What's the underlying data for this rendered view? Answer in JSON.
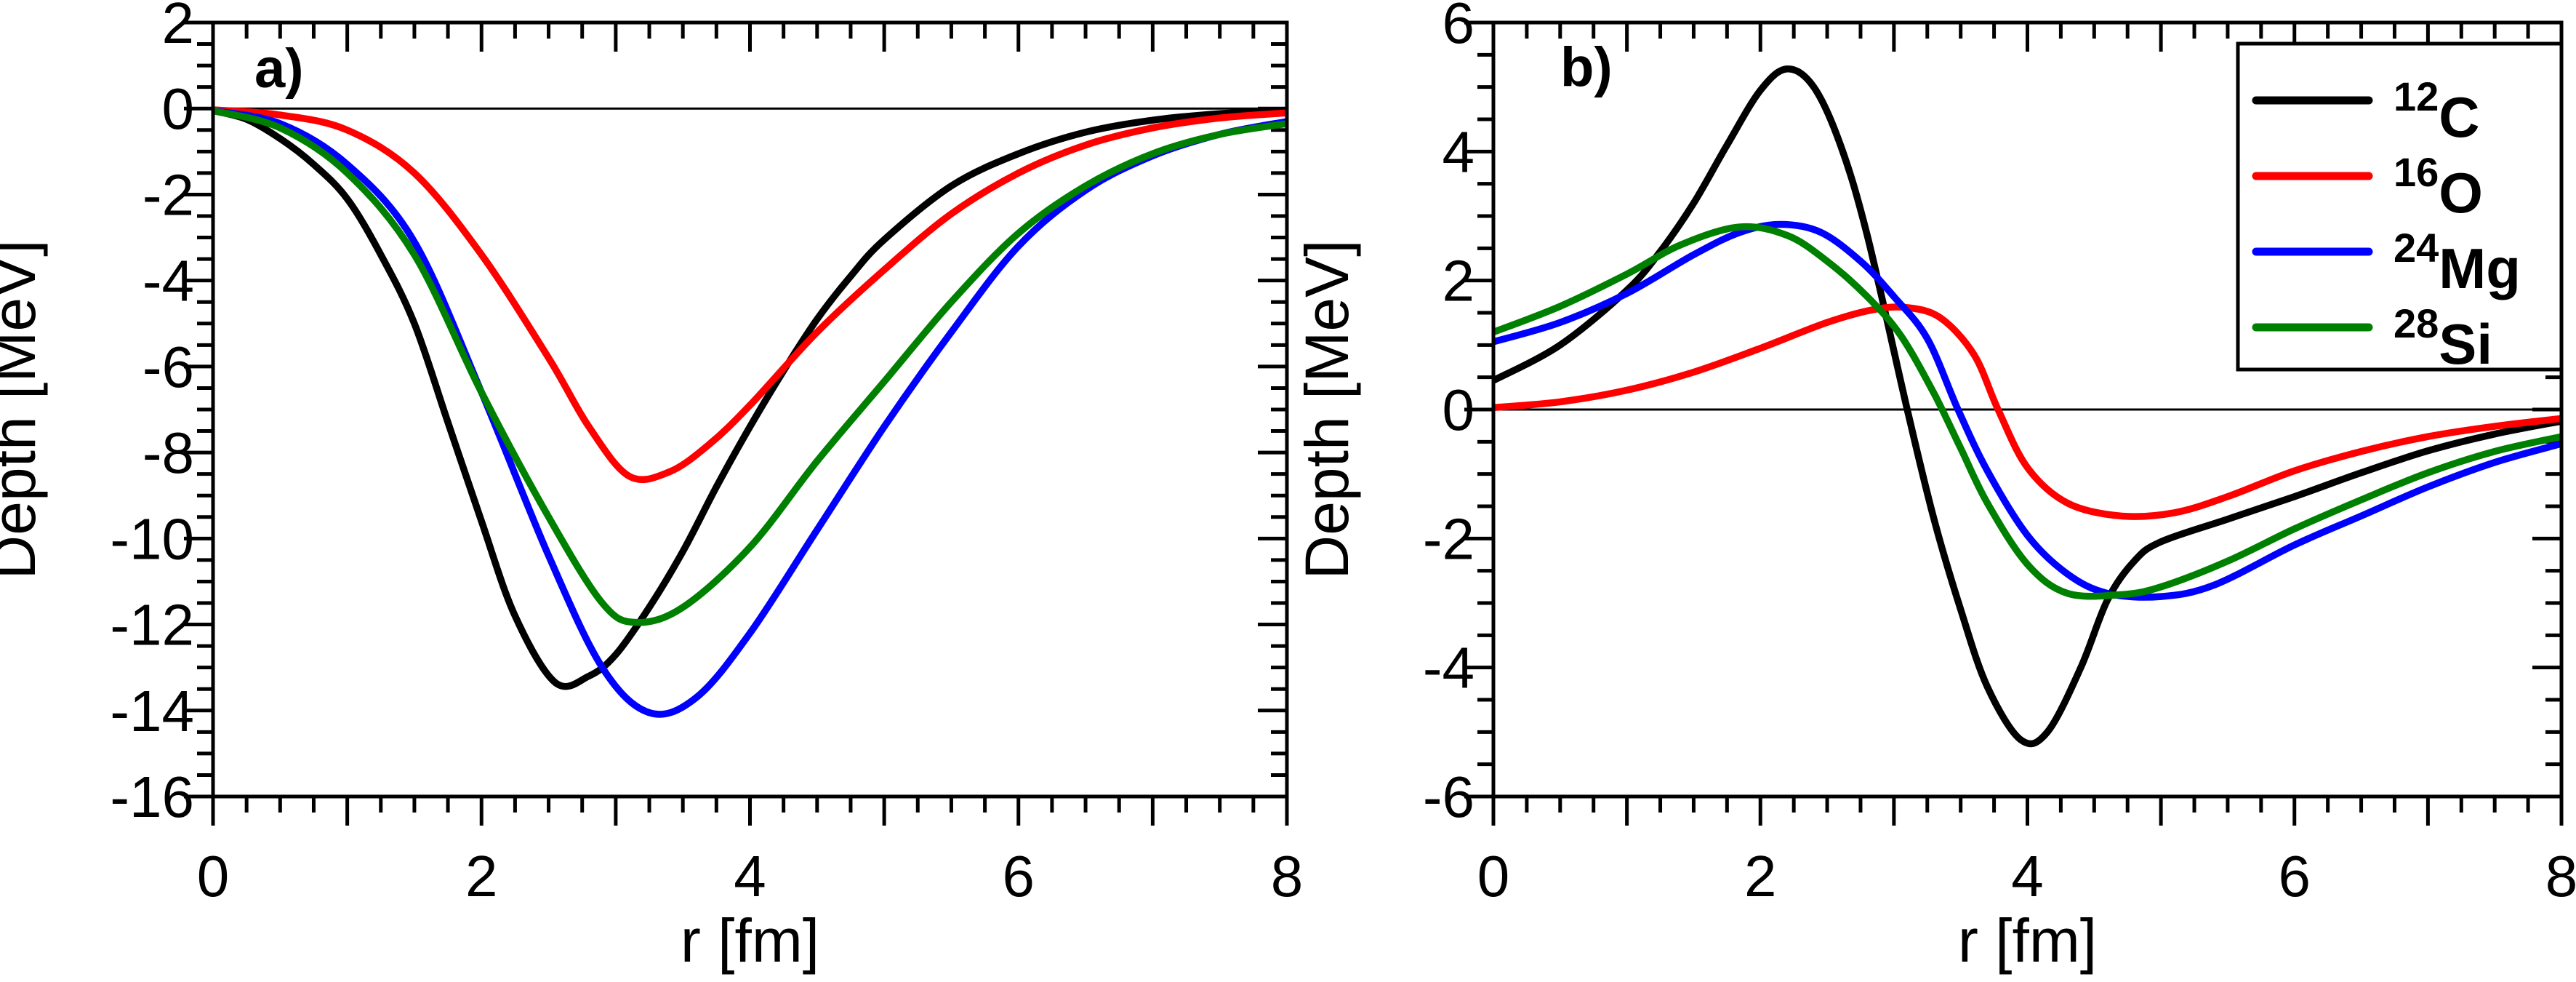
{
  "figure": {
    "background": "#ffffff",
    "axis_color": "#000000"
  },
  "chart_data": [
    {
      "type": "line",
      "panel_label": "a)",
      "xlabel": "r [fm]",
      "ylabel": "Depth [MeV]",
      "xlim": [
        0,
        8
      ],
      "ylim": [
        -16,
        2
      ],
      "grid": false,
      "zero_line": true,
      "x_tick_labels": [
        "0",
        "2",
        "4",
        "6",
        "8"
      ],
      "y_tick_labels": [
        "2",
        "0",
        "-2",
        "-4",
        "-6",
        "-8",
        "-10",
        "-12",
        "-14",
        "-16"
      ],
      "x_label_step": 2,
      "x_minor_step": 0.25,
      "y_label_step": 2,
      "y_minor_step": 0.5,
      "legend_position": "none",
      "series": [
        {
          "name": "12C",
          "color": "#000000",
          "points": [
            [
              0,
              -0.05
            ],
            [
              0.25,
              -0.25
            ],
            [
              0.5,
              -0.7
            ],
            [
              0.75,
              -1.3
            ],
            [
              1,
              -2.1
            ],
            [
              1.25,
              -3.4
            ],
            [
              1.5,
              -5.0
            ],
            [
              1.75,
              -7.3
            ],
            [
              2,
              -9.6
            ],
            [
              2.25,
              -11.8
            ],
            [
              2.55,
              -13.35
            ],
            [
              2.8,
              -13.2
            ],
            [
              3,
              -12.7
            ],
            [
              3.25,
              -11.6
            ],
            [
              3.5,
              -10.3
            ],
            [
              3.75,
              -8.8
            ],
            [
              4,
              -7.4
            ],
            [
              4.25,
              -6.1
            ],
            [
              4.5,
              -4.9
            ],
            [
              4.75,
              -3.9
            ],
            [
              5,
              -3.05
            ],
            [
              5.5,
              -1.8
            ],
            [
              6,
              -1.05
            ],
            [
              6.5,
              -0.55
            ],
            [
              7,
              -0.27
            ],
            [
              7.5,
              -0.12
            ],
            [
              8,
              -0.05
            ]
          ]
        },
        {
          "name": "16O",
          "color": "#ff0000",
          "points": [
            [
              0,
              -0.03
            ],
            [
              0.5,
              -0.15
            ],
            [
              1,
              -0.5
            ],
            [
              1.5,
              -1.5
            ],
            [
              2,
              -3.4
            ],
            [
              2.5,
              -5.8
            ],
            [
              2.8,
              -7.4
            ],
            [
              3.1,
              -8.55
            ],
            [
              3.4,
              -8.45
            ],
            [
              3.7,
              -7.8
            ],
            [
              4,
              -6.9
            ],
            [
              4.5,
              -5.2
            ],
            [
              5,
              -3.75
            ],
            [
              5.5,
              -2.45
            ],
            [
              6,
              -1.5
            ],
            [
              6.5,
              -0.85
            ],
            [
              7,
              -0.45
            ],
            [
              7.5,
              -0.22
            ],
            [
              8,
              -0.1
            ]
          ]
        },
        {
          "name": "24Mg",
          "color": "#0000ff",
          "points": [
            [
              0,
              -0.05
            ],
            [
              0.5,
              -0.35
            ],
            [
              1,
              -1.3
            ],
            [
              1.5,
              -3.1
            ],
            [
              2,
              -6.6
            ],
            [
              2.5,
              -10.4
            ],
            [
              2.9,
              -13.0
            ],
            [
              3.25,
              -14.05
            ],
            [
              3.6,
              -13.7
            ],
            [
              4,
              -12.2
            ],
            [
              4.5,
              -9.8
            ],
            [
              5,
              -7.4
            ],
            [
              5.5,
              -5.2
            ],
            [
              6,
              -3.2
            ],
            [
              6.5,
              -1.9
            ],
            [
              7,
              -1.1
            ],
            [
              7.5,
              -0.6
            ],
            [
              8,
              -0.3
            ]
          ]
        },
        {
          "name": "28Si",
          "color": "#008000",
          "points": [
            [
              0,
              -0.05
            ],
            [
              0.5,
              -0.45
            ],
            [
              1,
              -1.5
            ],
            [
              1.5,
              -3.4
            ],
            [
              2,
              -6.6
            ],
            [
              2.5,
              -9.5
            ],
            [
              2.9,
              -11.5
            ],
            [
              3.15,
              -11.95
            ],
            [
              3.5,
              -11.6
            ],
            [
              4,
              -10.2
            ],
            [
              4.5,
              -8.2
            ],
            [
              5,
              -6.35
            ],
            [
              5.5,
              -4.5
            ],
            [
              6,
              -2.9
            ],
            [
              6.5,
              -1.8
            ],
            [
              7,
              -1.05
            ],
            [
              7.5,
              -0.6
            ],
            [
              8,
              -0.35
            ]
          ]
        }
      ]
    },
    {
      "type": "line",
      "panel_label": "b)",
      "xlabel": "r [fm]",
      "ylabel": "Depth [MeV]",
      "xlim": [
        0,
        8
      ],
      "ylim": [
        -6,
        6
      ],
      "grid": false,
      "zero_line": true,
      "x_tick_labels": [
        "0",
        "2",
        "4",
        "6",
        "8"
      ],
      "y_tick_labels": [
        "6",
        "4",
        "2",
        "0",
        "-2",
        "-4",
        "-6"
      ],
      "x_label_step": 2,
      "x_minor_step": 0.25,
      "y_label_step": 2,
      "y_minor_step": 0.5,
      "legend_position": "top-right",
      "series": [
        {
          "name": "12C",
          "color": "#000000",
          "points": [
            [
              0,
              0.45
            ],
            [
              0.5,
              1.0
            ],
            [
              1,
              1.85
            ],
            [
              1.25,
              2.45
            ],
            [
              1.5,
              3.2
            ],
            [
              1.75,
              4.1
            ],
            [
              2,
              4.95
            ],
            [
              2.2,
              5.28
            ],
            [
              2.4,
              5.0
            ],
            [
              2.6,
              4.1
            ],
            [
              2.8,
              2.7
            ],
            [
              3.1,
              0
            ],
            [
              3.3,
              -1.7
            ],
            [
              3.5,
              -3.1
            ],
            [
              3.7,
              -4.3
            ],
            [
              3.95,
              -5.12
            ],
            [
              4.15,
              -5.0
            ],
            [
              4.4,
              -4.0
            ],
            [
              4.6,
              -2.95
            ],
            [
              4.8,
              -2.35
            ],
            [
              5,
              -2.05
            ],
            [
              5.5,
              -1.7
            ],
            [
              6,
              -1.35
            ],
            [
              6.5,
              -0.98
            ],
            [
              7,
              -0.64
            ],
            [
              7.5,
              -0.38
            ],
            [
              8,
              -0.18
            ]
          ]
        },
        {
          "name": "16O",
          "color": "#ff0000",
          "points": [
            [
              0,
              0.03
            ],
            [
              0.5,
              0.12
            ],
            [
              1,
              0.3
            ],
            [
              1.5,
              0.58
            ],
            [
              2,
              0.95
            ],
            [
              2.5,
              1.35
            ],
            [
              2.85,
              1.55
            ],
            [
              3.1,
              1.58
            ],
            [
              3.35,
              1.42
            ],
            [
              3.6,
              0.85
            ],
            [
              3.78,
              0.0
            ],
            [
              4,
              -0.9
            ],
            [
              4.3,
              -1.45
            ],
            [
              4.7,
              -1.65
            ],
            [
              5.1,
              -1.6
            ],
            [
              5.5,
              -1.35
            ],
            [
              6,
              -0.95
            ],
            [
              6.5,
              -0.65
            ],
            [
              7,
              -0.42
            ],
            [
              7.5,
              -0.26
            ],
            [
              8,
              -0.14
            ]
          ]
        },
        {
          "name": "24Mg",
          "color": "#0000ff",
          "points": [
            [
              0,
              1.05
            ],
            [
              0.5,
              1.35
            ],
            [
              1,
              1.8
            ],
            [
              1.5,
              2.4
            ],
            [
              1.85,
              2.75
            ],
            [
              2.15,
              2.87
            ],
            [
              2.45,
              2.75
            ],
            [
              2.75,
              2.3
            ],
            [
              3,
              1.75
            ],
            [
              3.25,
              1.1
            ],
            [
              3.48,
              0
            ],
            [
              3.7,
              -0.95
            ],
            [
              4,
              -1.95
            ],
            [
              4.3,
              -2.55
            ],
            [
              4.6,
              -2.85
            ],
            [
              5,
              -2.9
            ],
            [
              5.4,
              -2.72
            ],
            [
              6,
              -2.1
            ],
            [
              6.5,
              -1.65
            ],
            [
              7,
              -1.2
            ],
            [
              7.5,
              -0.82
            ],
            [
              8,
              -0.53
            ]
          ]
        },
        {
          "name": "28Si",
          "color": "#008000",
          "points": [
            [
              0,
              1.2
            ],
            [
              0.5,
              1.6
            ],
            [
              1,
              2.1
            ],
            [
              1.4,
              2.55
            ],
            [
              1.84,
              2.83
            ],
            [
              2.2,
              2.7
            ],
            [
              2.5,
              2.3
            ],
            [
              2.8,
              1.75
            ],
            [
              3.05,
              1.15
            ],
            [
              3.3,
              0.25
            ],
            [
              3.5,
              -0.6
            ],
            [
              3.7,
              -1.45
            ],
            [
              4,
              -2.4
            ],
            [
              4.3,
              -2.85
            ],
            [
              4.7,
              -2.87
            ],
            [
              5,
              -2.75
            ],
            [
              5.5,
              -2.35
            ],
            [
              6,
              -1.85
            ],
            [
              6.5,
              -1.4
            ],
            [
              7,
              -0.98
            ],
            [
              7.5,
              -0.65
            ],
            [
              8,
              -0.42
            ]
          ]
        }
      ],
      "legend": {
        "entries": [
          {
            "sup": "12",
            "label": "C",
            "series": "12C"
          },
          {
            "sup": "16",
            "label": "O",
            "series": "16O"
          },
          {
            "sup": "24",
            "label": "Mg",
            "series": "24Mg"
          },
          {
            "sup": "28",
            "label": "Si",
            "series": "28Si"
          }
        ]
      }
    }
  ]
}
